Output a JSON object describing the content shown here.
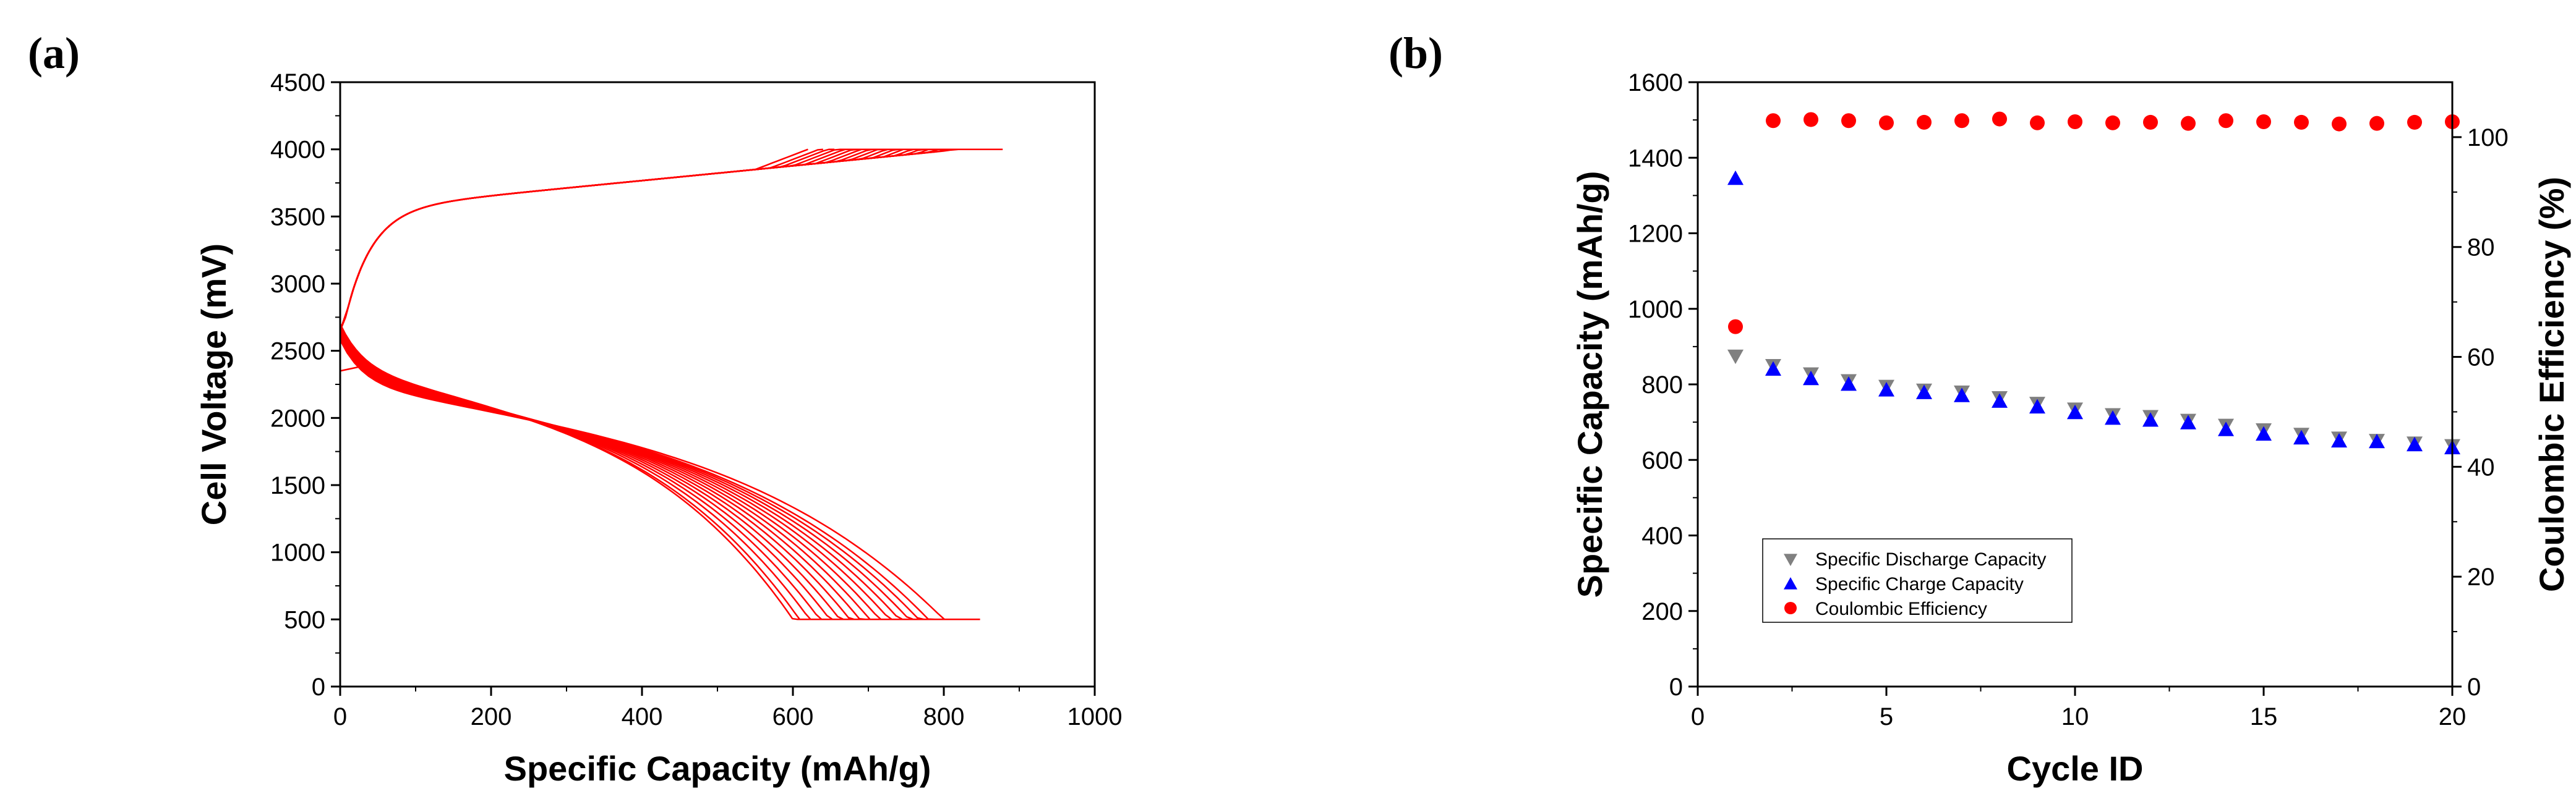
{
  "chart_data": [
    {
      "panel_label": "(a)",
      "type": "line",
      "xlabel": "Specific Capacity (mAh/g)",
      "ylabel": "Cell Voltage (mV)",
      "xlim": [
        0,
        1000
      ],
      "ylim": [
        0,
        4500
      ],
      "xticks": [
        "0",
        "200",
        "400",
        "600",
        "800",
        "1000"
      ],
      "yticks": [
        "0",
        "500",
        "1000",
        "1500",
        "2000",
        "2500",
        "3000",
        "3500",
        "4000",
        "4500"
      ],
      "line_color": "#ff0000",
      "charge_end_capacities": [
        620,
        640,
        655,
        670,
        685,
        700,
        715,
        730,
        745,
        760,
        775,
        790,
        805,
        820,
        835,
        850,
        865,
        878
      ],
      "discharge_end_capacities": [
        620,
        630,
        645,
        660,
        675,
        690,
        705,
        720,
        735,
        750,
        765,
        780,
        795,
        810,
        825,
        848
      ],
      "charge_end_voltage": 4000,
      "discharge_end_voltage": 500
    },
    {
      "panel_label": "(b)",
      "type": "scatter",
      "xlabel": "Cycle ID",
      "ylabel": "Specific Capacity (mAh/g)",
      "ylabel_right": "Coulombic Efficiency (%)",
      "xlim": [
        0,
        20
      ],
      "ylim": [
        0,
        1600
      ],
      "ylim_right": [
        0,
        110
      ],
      "xticks": [
        "0",
        "5",
        "10",
        "15",
        "20"
      ],
      "yticks": [
        "0",
        "200",
        "400",
        "600",
        "800",
        "1000",
        "1200",
        "1400",
        "1600"
      ],
      "yticks_right": [
        "0",
        "20",
        "40",
        "60",
        "80",
        "100"
      ],
      "x": [
        1,
        2,
        3,
        4,
        5,
        6,
        7,
        8,
        9,
        10,
        11,
        12,
        13,
        14,
        15,
        16,
        17,
        18,
        19,
        20
      ],
      "series": [
        {
          "name": "Specific Discharge Capacity",
          "marker": "triangle-down",
          "color": "#808080",
          "axis": "left",
          "values": [
            875,
            850,
            828,
            810,
            795,
            785,
            780,
            765,
            750,
            735,
            720,
            715,
            705,
            692,
            680,
            668,
            658,
            652,
            645,
            638
          ]
        },
        {
          "name": "Specific Charge Capacity",
          "marker": "triangle-up",
          "color": "#0000ff",
          "axis": "left",
          "values": [
            1345,
            840,
            815,
            800,
            785,
            778,
            770,
            755,
            740,
            725,
            710,
            705,
            698,
            680,
            668,
            658,
            650,
            648,
            640,
            632
          ]
        },
        {
          "name": "Coulombic Efficiency",
          "marker": "circle",
          "color": "#ff0000",
          "axis": "right",
          "values": [
            65.5,
            103,
            103.2,
            103,
            102.6,
            102.7,
            103,
            103.3,
            102.6,
            102.8,
            102.6,
            102.7,
            102.5,
            103,
            102.8,
            102.7,
            102.4,
            102.5,
            102.7,
            102.8
          ]
        }
      ],
      "legend_position": "lower-left"
    }
  ]
}
